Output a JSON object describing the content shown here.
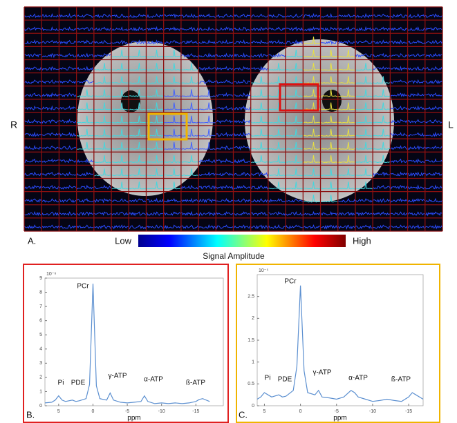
{
  "figure": {
    "left_side": "R",
    "right_side": "L",
    "panel_label": "A.",
    "low": "Low",
    "high": "High",
    "colorbar_label": "Signal Amplitude"
  },
  "chart_data": [
    {
      "type": "line",
      "panel_label": "B.",
      "exponent": "10⁻⁶",
      "xlabel": "ppm",
      "color": "#5b8fd0",
      "annotations": [
        "Pi",
        "PDE",
        "PCr",
        "γ-ATP",
        "α-ATP",
        "ß-ATP"
      ],
      "x": [
        7,
        6,
        5.5,
        5,
        4.5,
        4,
        3,
        2.5,
        2,
        1,
        0.5,
        0,
        -0.5,
        -1,
        -2,
        -2.5,
        -3,
        -4,
        -5,
        -6,
        -7,
        -7.5,
        -8,
        -9,
        -10,
        -11,
        -12,
        -13,
        -14,
        -15,
        -15.5,
        -16,
        -17
      ],
      "values": [
        0.2,
        0.25,
        0.4,
        0.7,
        0.4,
        0.3,
        0.4,
        0.3,
        0.35,
        0.5,
        1.5,
        8.6,
        1.4,
        0.5,
        0.4,
        0.9,
        0.4,
        0.25,
        0.2,
        0.25,
        0.3,
        0.7,
        0.3,
        0.15,
        0.2,
        0.15,
        0.2,
        0.15,
        0.2,
        0.3,
        0.45,
        0.5,
        0.3
      ],
      "xlim": [
        7,
        -19
      ],
      "ylim": [
        0,
        9
      ],
      "xticks": [
        5,
        0,
        -5,
        -10,
        -15
      ],
      "yticks": [
        0,
        1,
        2,
        3,
        4,
        5,
        6,
        7,
        8,
        9
      ]
    },
    {
      "type": "line",
      "panel_label": "C.",
      "exponent": "10⁻⁵",
      "xlabel": "ppm",
      "color": "#5b8fd0",
      "annotations": [
        "Pi",
        "PDE",
        "PCr",
        "γ-ATP",
        "α-ATP",
        "ß-ATP"
      ],
      "x": [
        6,
        5.5,
        5,
        4.5,
        4,
        3,
        2.5,
        2,
        1,
        0.5,
        0,
        -0.5,
        -1,
        -2,
        -2.5,
        -3,
        -4,
        -5,
        -6,
        -7,
        -7.5,
        -8,
        -9,
        -10,
        -11,
        -12,
        -13,
        -14,
        -15,
        -15.5,
        -16,
        -17
      ],
      "values": [
        0.15,
        0.2,
        0.3,
        0.25,
        0.2,
        0.25,
        0.2,
        0.22,
        0.35,
        0.9,
        2.75,
        0.8,
        0.3,
        0.25,
        0.35,
        0.2,
        0.18,
        0.15,
        0.2,
        0.35,
        0.3,
        0.2,
        0.15,
        0.1,
        0.12,
        0.15,
        0.12,
        0.1,
        0.2,
        0.3,
        0.25,
        0.15
      ],
      "xlim": [
        6,
        -17
      ],
      "ylim": [
        0,
        3
      ],
      "xticks": [
        5,
        0,
        -5,
        -10,
        -15
      ],
      "yticks": [
        0,
        0.5,
        1,
        1.5,
        2,
        2.5
      ]
    }
  ]
}
